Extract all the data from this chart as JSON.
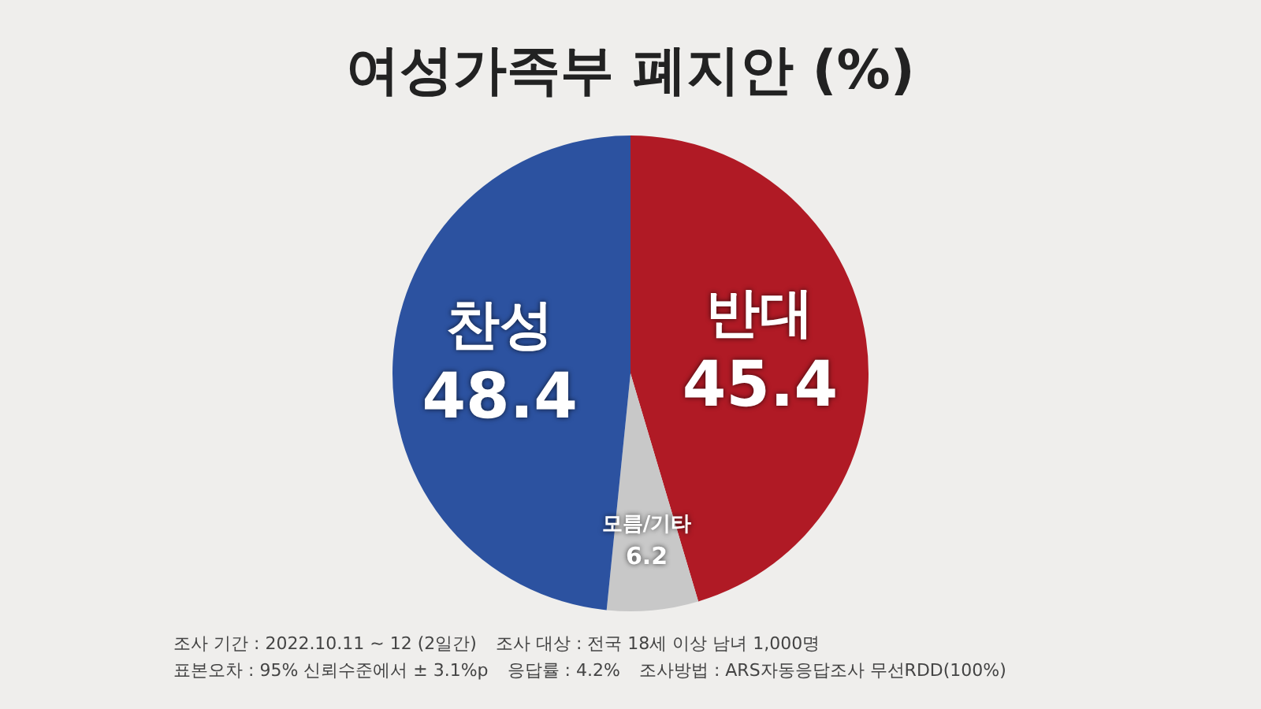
{
  "chart_data": {
    "type": "pie",
    "title": "여성가족부 폐지안 (%)",
    "categories": [
      "반대",
      "모름/기타",
      "찬성"
    ],
    "values": [
      45.4,
      6.2,
      48.4
    ],
    "colors": [
      "#b01a25",
      "#c8c8c8",
      "#2c52a0"
    ],
    "data_labels": true,
    "legend": false,
    "annotations": [
      "조사 기간 : 2022.10.11 ~ 12 (2일간)",
      "조사 대상 : 전국 18세 이상 남녀 1,000명",
      "표본오차 : 95% 신뢰수준에서 ± 3.1%p",
      "응답률 : 4.2%",
      "조사방법 : ARS자동응답조사 무선RDD(100%)"
    ]
  }
}
